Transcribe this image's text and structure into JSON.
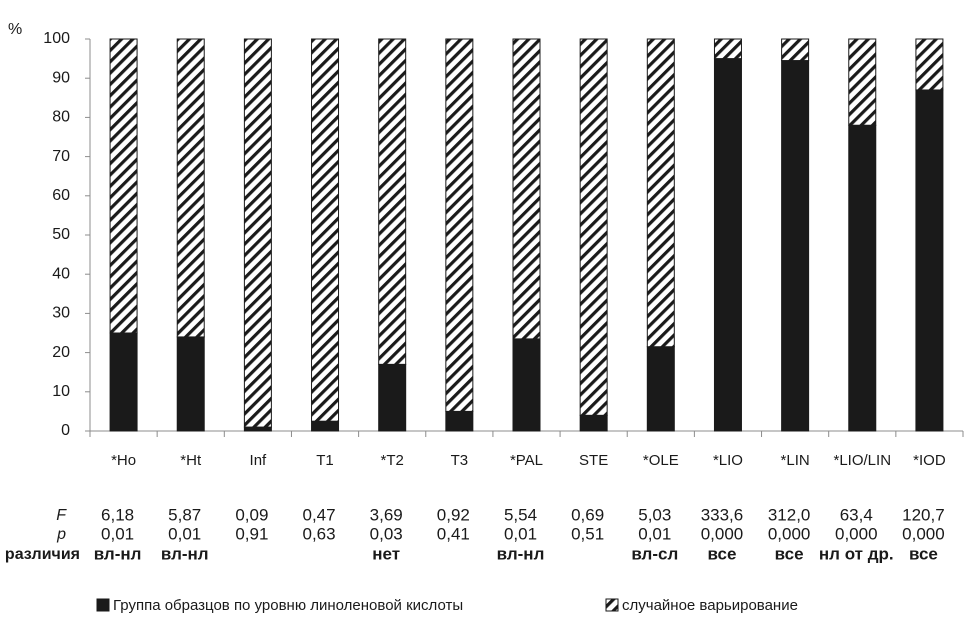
{
  "chart_data": {
    "type": "stacked_bar",
    "y_label": "%",
    "categories": [
      "*Ho",
      "*Ht",
      "Inf",
      "T1",
      "*T2",
      "T3",
      "*PAL",
      "STE",
      "*OLE",
      "*LIO",
      "*LIN",
      "*LIO/LIN",
      "*IOD"
    ],
    "series": [
      {
        "name": "Группа образцов по уровню линоленовой кислоты",
        "color": "#1a1a1a",
        "pattern": "solid",
        "values": [
          25,
          24,
          1,
          2.5,
          17,
          5,
          23.5,
          4,
          21.5,
          95,
          94.5,
          78,
          87
        ]
      },
      {
        "name": "случайное варьирование",
        "color": "#1a1a1a",
        "pattern": "hatch",
        "values": [
          75,
          76,
          99,
          97.5,
          83,
          95,
          76.5,
          96,
          78.5,
          5,
          5.5,
          22,
          13
        ]
      }
    ],
    "ylim": [
      0,
      100
    ],
    "yticks": [
      0,
      10,
      20,
      30,
      40,
      50,
      60,
      70,
      80,
      90,
      100
    ],
    "table": {
      "rows": [
        {
          "label": "F",
          "values": [
            "6,18",
            "5,87",
            "0,09",
            "0,47",
            "3,69",
            "0,92",
            "5,54",
            "0,69",
            "5,03",
            "333,6",
            "312,0",
            "63,4",
            "120,7"
          ]
        },
        {
          "label": "p",
          "values": [
            "0,01",
            "0,01",
            "0,91",
            "0,63",
            "0,03",
            "0,41",
            "0,01",
            "0,51",
            "0,01",
            "0,000",
            "0,000",
            "0,000",
            "0,000"
          ]
        },
        {
          "label": "различия",
          "values": [
            "вл-нл",
            "вл-нл",
            null,
            null,
            "нет",
            null,
            "вл-нл",
            null,
            "вл-сл",
            "все",
            "все",
            "нл от др.",
            "все"
          ]
        }
      ]
    }
  }
}
